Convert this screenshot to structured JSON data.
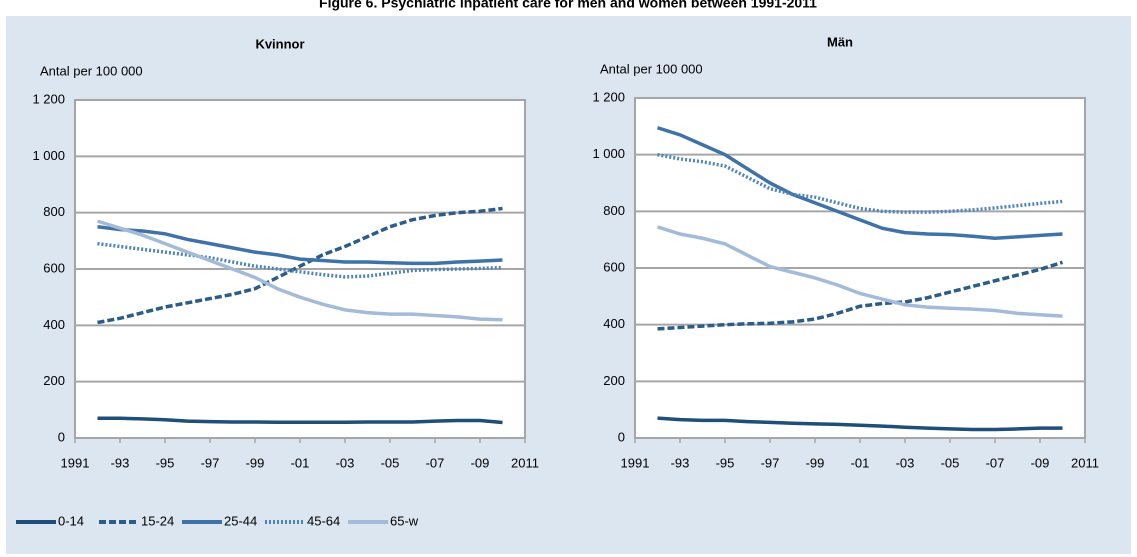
{
  "title": "Figure 6. Psychiatric inpatient care for men and women between 1991-2011",
  "chart_data": [
    {
      "type": "line",
      "title": "Kvinnor",
      "ylabel": "Antal per 100 000",
      "x": [
        1992,
        1993,
        1994,
        1995,
        1996,
        1997,
        1998,
        1999,
        2000,
        2001,
        2002,
        2003,
        2004,
        2005,
        2006,
        2007,
        2008,
        2009,
        2010
      ],
      "xlim": [
        1991,
        2011
      ],
      "xticks": [
        1991,
        {
          "value": 1993,
          "label": "-93"
        },
        {
          "value": 1995,
          "label": "-95"
        },
        {
          "value": 1997,
          "label": "-97"
        },
        {
          "value": 1999,
          "label": "-99"
        },
        {
          "value": 2001,
          "label": "-01"
        },
        {
          "value": 2003,
          "label": "-03"
        },
        {
          "value": 2005,
          "label": "-05"
        },
        {
          "value": 2007,
          "label": "-07"
        },
        {
          "value": 2009,
          "label": "-09"
        },
        2011
      ],
      "ylim": [
        0,
        1200
      ],
      "yticks": [
        0,
        200,
        400,
        600,
        800,
        {
          "value": 1000,
          "label": "1 000"
        },
        {
          "value": 1200,
          "label": "1 200"
        }
      ],
      "grid": true,
      "series": [
        {
          "name": "0-14",
          "color": "#1f4e79",
          "dash": "solid",
          "values": [
            70,
            70,
            68,
            65,
            60,
            58,
            57,
            57,
            56,
            56,
            56,
            56,
            57,
            57,
            57,
            60,
            62,
            62,
            55
          ]
        },
        {
          "name": "15-24",
          "color": "#2b5c8a",
          "dash": "dashed",
          "values": [
            410,
            425,
            445,
            465,
            480,
            495,
            510,
            530,
            570,
            610,
            650,
            680,
            715,
            750,
            775,
            790,
            800,
            805,
            815
          ]
        },
        {
          "name": "25-44",
          "color": "#3f72a8",
          "dash": "solid",
          "values": [
            750,
            740,
            735,
            725,
            705,
            690,
            675,
            660,
            650,
            635,
            630,
            625,
            625,
            622,
            620,
            620,
            625,
            628,
            632
          ]
        },
        {
          "name": "45-64",
          "color": "#4f83bb",
          "dash": "dotted",
          "values": [
            690,
            680,
            670,
            660,
            650,
            640,
            625,
            610,
            600,
            590,
            580,
            572,
            575,
            585,
            595,
            598,
            600,
            602,
            605
          ]
        },
        {
          "name": "65-w",
          "color": "#a3bbd9",
          "dash": "solid",
          "values": [
            770,
            745,
            720,
            690,
            660,
            630,
            600,
            570,
            530,
            500,
            475,
            455,
            445,
            440,
            440,
            435,
            430,
            422,
            420
          ]
        }
      ]
    },
    {
      "type": "line",
      "title": "Män",
      "ylabel": "Antal per 100 000",
      "x": [
        1992,
        1993,
        1994,
        1995,
        1996,
        1997,
        1998,
        1999,
        2000,
        2001,
        2002,
        2003,
        2004,
        2005,
        2006,
        2007,
        2008,
        2009,
        2010
      ],
      "xlim": [
        1991,
        2011
      ],
      "xticks": [
        1991,
        {
          "value": 1993,
          "label": "-93"
        },
        {
          "value": 1995,
          "label": "-95"
        },
        {
          "value": 1997,
          "label": "-97"
        },
        {
          "value": 1999,
          "label": "-99"
        },
        {
          "value": 2001,
          "label": "-01"
        },
        {
          "value": 2003,
          "label": "-03"
        },
        {
          "value": 2005,
          "label": "-05"
        },
        {
          "value": 2007,
          "label": "-07"
        },
        {
          "value": 2009,
          "label": "-09"
        },
        2011
      ],
      "ylim": [
        0,
        1200
      ],
      "yticks": [
        0,
        200,
        400,
        600,
        800,
        {
          "value": 1000,
          "label": "1 000"
        },
        {
          "value": 1200,
          "label": "1 200"
        }
      ],
      "grid": true,
      "series": [
        {
          "name": "0-14",
          "color": "#1f4e79",
          "dash": "solid",
          "values": [
            70,
            65,
            62,
            62,
            58,
            55,
            52,
            50,
            48,
            45,
            42,
            38,
            35,
            32,
            30,
            30,
            32,
            35,
            35
          ]
        },
        {
          "name": "15-24",
          "color": "#2b5c8a",
          "dash": "dashed",
          "values": [
            385,
            390,
            395,
            400,
            403,
            405,
            410,
            420,
            440,
            465,
            475,
            480,
            495,
            515,
            535,
            555,
            575,
            595,
            620
          ]
        },
        {
          "name": "25-44",
          "color": "#3f72a8",
          "dash": "solid",
          "values": [
            1095,
            1070,
            1035,
            1000,
            950,
            900,
            860,
            830,
            800,
            770,
            740,
            725,
            720,
            718,
            712,
            705,
            710,
            715,
            720
          ]
        },
        {
          "name": "45-64",
          "color": "#4f83bb",
          "dash": "dotted",
          "values": [
            1000,
            985,
            975,
            960,
            920,
            880,
            860,
            850,
            830,
            810,
            800,
            797,
            797,
            800,
            805,
            812,
            820,
            828,
            835
          ]
        },
        {
          "name": "65-w",
          "color": "#a3bbd9",
          "dash": "solid",
          "values": [
            745,
            720,
            705,
            685,
            645,
            605,
            585,
            565,
            540,
            510,
            490,
            470,
            462,
            458,
            455,
            450,
            440,
            435,
            430
          ]
        }
      ]
    }
  ]
}
